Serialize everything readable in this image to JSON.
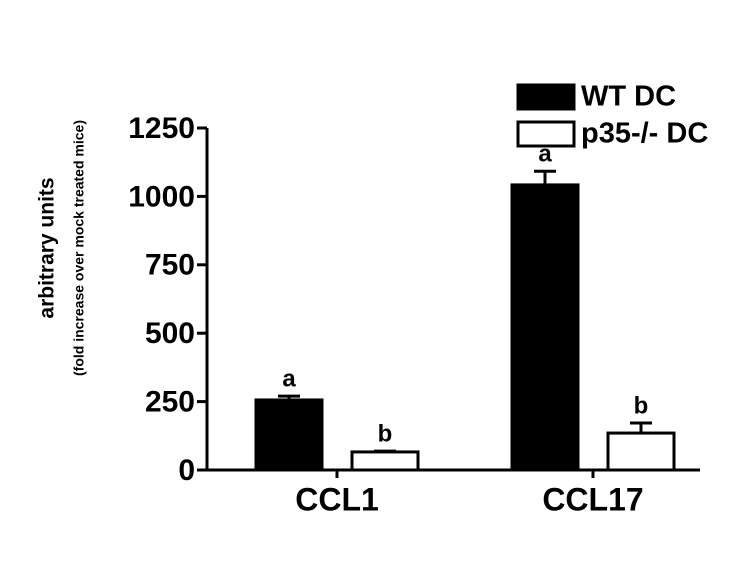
{
  "chart_data": {
    "type": "bar",
    "y_label": "arbitrary units",
    "y_sublabel": "(fold increase over mock treated mice)",
    "categories": [
      "CCL1",
      "CCL17"
    ],
    "series": [
      {
        "name": "WT DC",
        "color": "#000000",
        "values": [
          256,
          1042
        ],
        "errors": [
          14,
          50
        ],
        "annotations": [
          "a",
          "a"
        ]
      },
      {
        "name": "p35-/- DC",
        "color": "#ffffff",
        "values": [
          66,
          135
        ],
        "errors": [
          3,
          37
        ],
        "annotations": [
          "b",
          "b"
        ]
      }
    ],
    "ylim": [
      0,
      1250
    ],
    "yticks": [
      0,
      250,
      500,
      750,
      1000,
      1250
    ]
  }
}
